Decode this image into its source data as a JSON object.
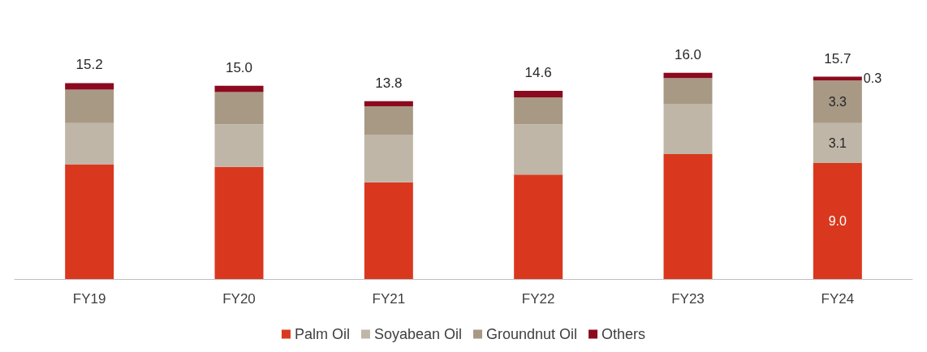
{
  "chart_data": {
    "type": "bar",
    "stacked": true,
    "categories": [
      "FY19",
      "FY20",
      "FY21",
      "FY22",
      "FY23",
      "FY24"
    ],
    "series": [
      {
        "name": "Palm Oil",
        "color": "#d9381e",
        "values": [
          8.9,
          8.7,
          7.5,
          8.1,
          9.7,
          9.0
        ],
        "value_labels": [
          null,
          null,
          null,
          null,
          null,
          "9.0"
        ]
      },
      {
        "name": "Soyabean Oil",
        "color": "#bfb6a8",
        "values": [
          3.2,
          3.3,
          3.7,
          3.9,
          3.9,
          3.1
        ],
        "value_labels": [
          null,
          null,
          null,
          null,
          null,
          "3.1"
        ]
      },
      {
        "name": "Groundnut Oil",
        "color": "#a89985",
        "values": [
          2.6,
          2.5,
          2.2,
          2.1,
          2.0,
          3.3
        ],
        "value_labels": [
          null,
          null,
          null,
          null,
          null,
          "3.3"
        ]
      },
      {
        "name": "Others",
        "color": "#8b0a1f",
        "values": [
          0.5,
          0.5,
          0.4,
          0.5,
          0.4,
          0.3
        ],
        "value_labels": [
          null,
          null,
          null,
          null,
          null,
          "0.3"
        ]
      }
    ],
    "totals": [
      "15.2",
      "15.0",
      "13.8",
      "14.6",
      "16.0",
      "15.7"
    ],
    "legend": "bottom"
  }
}
